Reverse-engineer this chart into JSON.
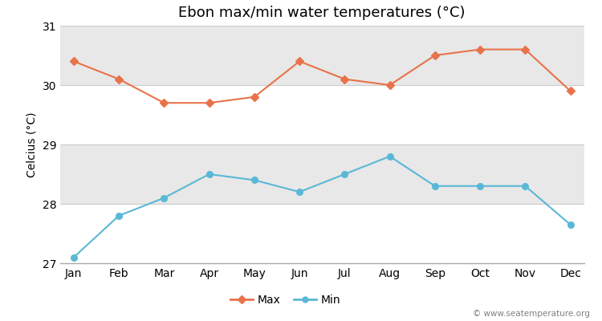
{
  "title": "Ebon max/min water temperatures (°C)",
  "ylabel": "Celcius (°C)",
  "months": [
    "Jan",
    "Feb",
    "Mar",
    "Apr",
    "May",
    "Jun",
    "Jul",
    "Aug",
    "Sep",
    "Oct",
    "Nov",
    "Dec"
  ],
  "max_values": [
    30.4,
    30.1,
    29.7,
    29.7,
    29.8,
    30.4,
    30.1,
    30.0,
    30.5,
    30.6,
    30.6,
    29.9
  ],
  "min_values": [
    27.1,
    27.8,
    28.1,
    28.5,
    28.4,
    28.2,
    28.5,
    28.8,
    28.3,
    28.3,
    28.3,
    27.65
  ],
  "max_color": "#e8724a",
  "min_color": "#5ab8d6",
  "ylim": [
    27,
    31
  ],
  "yticks": [
    27,
    28,
    29,
    30,
    31
  ],
  "fig_bg_color": "#ffffff",
  "band_colors": [
    "#ffffff",
    "#e8e8e8"
  ],
  "watermark": "© www.seatemperature.org",
  "legend_max": "Max",
  "legend_min": "Min",
  "title_fontsize": 13,
  "axis_fontsize": 10,
  "watermark_fontsize": 7.5
}
